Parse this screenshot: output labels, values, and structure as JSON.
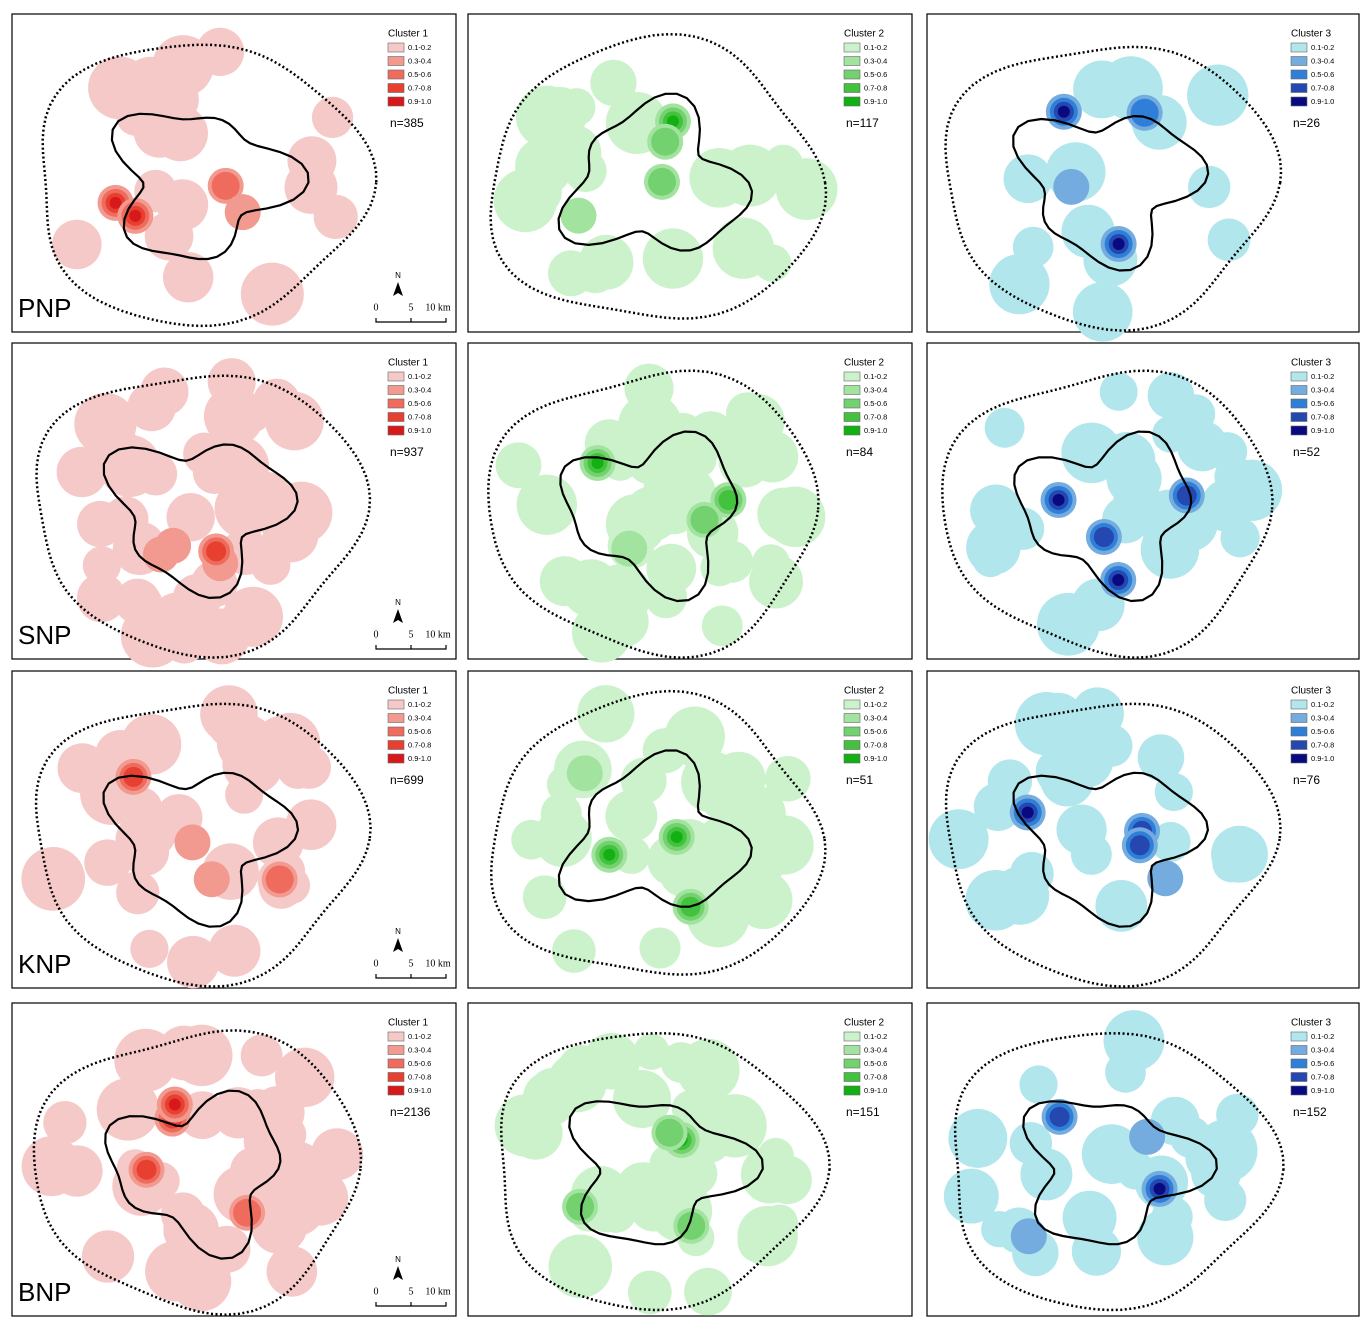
{
  "legend_classes": [
    "0.1-0.2",
    "0.3-0.4",
    "0.5-0.6",
    "0.7-0.8",
    "0.9-1.0"
  ],
  "clusters": [
    {
      "title": "Cluster 1",
      "colors": [
        "#f6c9c9",
        "#f29a8f",
        "#ee6b5d",
        "#e84030",
        "#d7191c"
      ]
    },
    {
      "title": "Cluster 2",
      "colors": [
        "#ccf2cc",
        "#a3e3a0",
        "#73d16f",
        "#42c23d",
        "#12b012"
      ]
    },
    {
      "title": "Cluster 3",
      "colors": [
        "#b0e6ec",
        "#74acdf",
        "#2f7fd8",
        "#2447b0",
        "#0a0a80"
      ]
    }
  ],
  "scale_bar": {
    "north": "N",
    "labels": [
      "0",
      "5",
      "10 km"
    ]
  },
  "rows": [
    {
      "park": "PNP",
      "counts": [
        "n=385",
        "n=117",
        "n=26"
      ]
    },
    {
      "park": "SNP",
      "counts": [
        "n=937",
        "n=84",
        "n=52"
      ]
    },
    {
      "park": "KNP",
      "counts": [
        "n=699",
        "n=51",
        "n=76"
      ]
    },
    {
      "park": "BNP",
      "counts": [
        "n=2136",
        "n=151",
        "n=152"
      ]
    }
  ]
}
